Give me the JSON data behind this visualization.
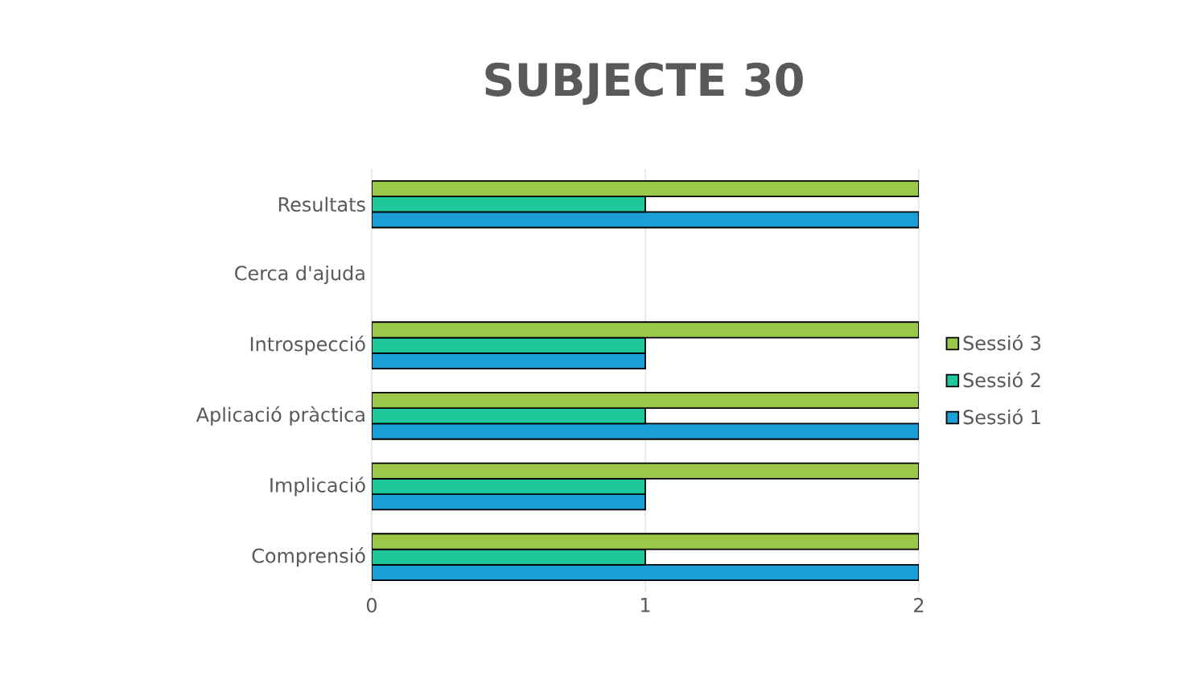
{
  "chart_data": {
    "type": "bar",
    "orientation": "horizontal",
    "title": "SUBJECTE 30",
    "categories": [
      "Resultats",
      "Cerca d'ajuda",
      "Introspecció",
      "Aplicació pràctica",
      "Implicació",
      "Comprensió"
    ],
    "series": [
      {
        "name": "Sessió 1",
        "color": "#1b9fd6",
        "values": [
          2,
          null,
          1,
          2,
          1,
          2
        ]
      },
      {
        "name": "Sessió 2",
        "color": "#1ec89a",
        "values": [
          1,
          null,
          1,
          1,
          1,
          1
        ]
      },
      {
        "name": "Sessió 3",
        "color": "#9cc84a",
        "values": [
          2,
          null,
          2,
          2,
          2,
          2
        ]
      }
    ],
    "xlim": [
      0,
      2
    ],
    "xticks": [
      0,
      1,
      2
    ],
    "grid": "x",
    "legend": "right"
  }
}
